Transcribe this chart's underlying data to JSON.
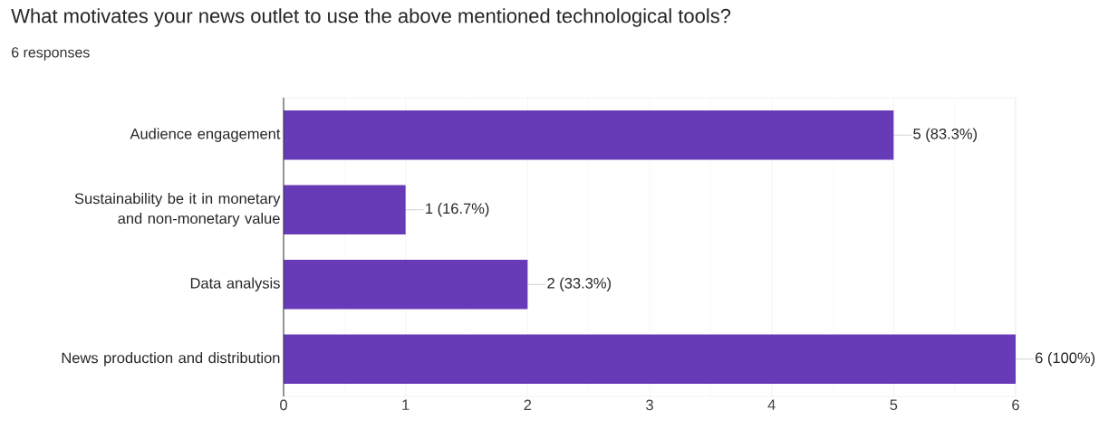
{
  "chart_data": {
    "type": "bar",
    "orientation": "horizontal",
    "title": "What motivates your news outlet to use the above mentioned technological tools?",
    "subtitle": "6 responses",
    "categories": [
      "Audience engagement",
      "Sustainability be it in monetary and non-monetary value",
      "Data analysis",
      "News production and distribution"
    ],
    "values": [
      5,
      1,
      2,
      6
    ],
    "value_labels": [
      "5 (83.3%)",
      "1 (16.7%)",
      "2 (33.3%)",
      "6 (100%)"
    ],
    "color": "#673ab7",
    "xlim": [
      0,
      6
    ],
    "xticks": [
      0,
      1,
      2,
      3,
      4,
      5,
      6
    ],
    "grid": "x"
  }
}
